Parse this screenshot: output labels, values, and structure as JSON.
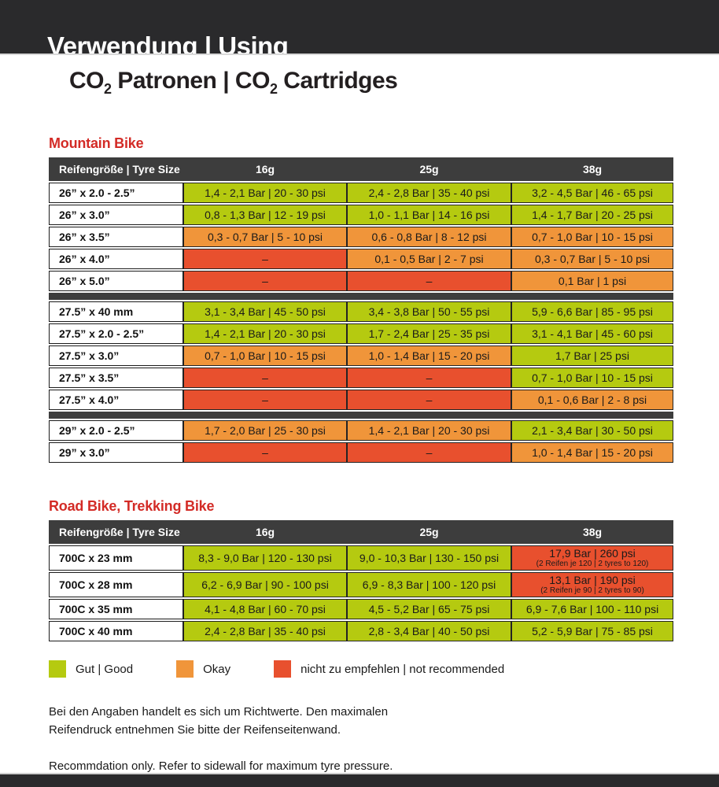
{
  "header": {
    "title": "Verwendung | Using",
    "subtitle": {
      "p1": "CO",
      "s1": "2",
      "p2": " Patronen | CO",
      "s2": "2",
      "p3": " Cartridges"
    }
  },
  "colors": {
    "good_green": "#b5ca10",
    "okay_orange": "#f0953a",
    "not_recommended_red": "#e8502e",
    "banner_dark": "#2a2a2c",
    "table_header_dark": "#3d3d3d",
    "heading_red": "#d32b26"
  },
  "sections": {
    "mountain": {
      "heading": "Mountain Bike",
      "columns": [
        "Reifengröße | Tyre Size",
        "16g",
        "25g",
        "38g"
      ],
      "rows": [
        {
          "label": "26” x 2.0 - 2.5”",
          "cells": [
            {
              "status": "green",
              "text": "1,4 - 2,1 Bar | 20 - 30 psi"
            },
            {
              "status": "green",
              "text": "2,4 - 2,8 Bar | 35 - 40 psi"
            },
            {
              "status": "green",
              "text": "3,2 - 4,5 Bar | 46 - 65 psi"
            }
          ]
        },
        {
          "label": "26” x 3.0”",
          "cells": [
            {
              "status": "green",
              "text": "0,8 - 1,3 Bar | 12 - 19 psi"
            },
            {
              "status": "green",
              "text": "1,0 - 1,1 Bar | 14 - 16 psi"
            },
            {
              "status": "green",
              "text": "1,4 - 1,7 Bar | 20 - 25 psi"
            }
          ]
        },
        {
          "label": "26” x 3.5”",
          "cells": [
            {
              "status": "orange",
              "text": "0,3 - 0,7 Bar | 5 - 10 psi"
            },
            {
              "status": "orange",
              "text": "0,6 - 0,8 Bar | 8 - 12 psi"
            },
            {
              "status": "orange",
              "text": "0,7 - 1,0 Bar | 10 - 15 psi"
            }
          ]
        },
        {
          "label": "26” x 4.0”",
          "cells": [
            {
              "status": "red",
              "text": "–"
            },
            {
              "status": "orange",
              "text": "0,1 - 0,5 Bar | 2 - 7 psi"
            },
            {
              "status": "orange",
              "text": "0,3 - 0,7 Bar | 5 - 10 psi"
            }
          ]
        },
        {
          "label": "26” x 5.0”",
          "cells": [
            {
              "status": "red",
              "text": "–"
            },
            {
              "status": "red",
              "text": "–"
            },
            {
              "status": "orange",
              "text": "0,1 Bar | 1 psi"
            }
          ]
        },
        {
          "separator": true
        },
        {
          "label": "27.5” x 40 mm",
          "cells": [
            {
              "status": "green",
              "text": "3,1 - 3,4 Bar | 45 - 50 psi"
            },
            {
              "status": "green",
              "text": "3,4 - 3,8 Bar | 50 - 55 psi"
            },
            {
              "status": "green",
              "text": "5,9 - 6,6 Bar | 85 - 95 psi"
            }
          ]
        },
        {
          "label": "27.5” x 2.0 - 2.5”",
          "cells": [
            {
              "status": "green",
              "text": "1,4 - 2,1 Bar | 20 - 30 psi"
            },
            {
              "status": "green",
              "text": "1,7 - 2,4 Bar | 25 - 35 psi"
            },
            {
              "status": "green",
              "text": "3,1 - 4,1 Bar | 45 - 60 psi"
            }
          ]
        },
        {
          "label": "27.5” x 3.0”",
          "cells": [
            {
              "status": "orange",
              "text": "0,7 - 1,0 Bar | 10 - 15 psi"
            },
            {
              "status": "orange",
              "text": "1,0 - 1,4 Bar | 15 - 20 psi"
            },
            {
              "status": "green",
              "text": "1,7 Bar | 25 psi"
            }
          ]
        },
        {
          "label": "27.5” x 3.5”",
          "cells": [
            {
              "status": "red",
              "text": "–"
            },
            {
              "status": "red",
              "text": "–"
            },
            {
              "status": "green",
              "text": "0,7 - 1,0 Bar | 10 - 15 psi"
            }
          ]
        },
        {
          "label": "27.5” x 4.0”",
          "cells": [
            {
              "status": "red",
              "text": "–"
            },
            {
              "status": "red",
              "text": "–"
            },
            {
              "status": "orange",
              "text": "0,1 - 0,6 Bar | 2 - 8 psi"
            }
          ]
        },
        {
          "separator": true
        },
        {
          "label": "29” x 2.0 - 2.5”",
          "cells": [
            {
              "status": "orange",
              "text": "1,7 - 2,0 Bar | 25 - 30 psi"
            },
            {
              "status": "orange",
              "text": "1,4 - 2,1 Bar | 20 - 30 psi"
            },
            {
              "status": "green",
              "text": "2,1 - 3,4 Bar | 30 - 50 psi"
            }
          ]
        },
        {
          "label": "29” x 3.0”",
          "cells": [
            {
              "status": "red",
              "text": "–"
            },
            {
              "status": "red",
              "text": "–"
            },
            {
              "status": "orange",
              "text": "1,0 - 1,4 Bar | 15 - 20 psi"
            }
          ]
        }
      ]
    },
    "road": {
      "heading": "Road Bike, Trekking Bike",
      "columns": [
        "Reifengröße | Tyre Size",
        "16g",
        "25g",
        "38g"
      ],
      "rows": [
        {
          "label": "700C x 23 mm",
          "cells": [
            {
              "status": "green",
              "text": "8,3 - 9,0 Bar | 120 - 130 psi"
            },
            {
              "status": "green",
              "text": "9,0 - 10,3 Bar | 130 - 150 psi"
            },
            {
              "status": "red",
              "text": "17,9 Bar | 260 psi",
              "sub": "(2 Reifen je 120 | 2 tyres to 120)"
            }
          ]
        },
        {
          "label": "700C x 28 mm",
          "cells": [
            {
              "status": "green",
              "text": "6,2 - 6,9 Bar | 90 - 100 psi"
            },
            {
              "status": "green",
              "text": "6,9 - 8,3 Bar | 100 - 120 psi"
            },
            {
              "status": "red",
              "text": "13,1 Bar | 190 psi",
              "sub": "(2 Reifen je 90 | 2 tyres to 90)"
            }
          ]
        },
        {
          "label": "700C x 35 mm",
          "cells": [
            {
              "status": "green",
              "text": "4,1 - 4,8 Bar | 60 - 70 psi"
            },
            {
              "status": "green",
              "text": "4,5 - 5,2 Bar | 65 - 75 psi"
            },
            {
              "status": "green",
              "text": "6,9 - 7,6 Bar | 100 - 110 psi"
            }
          ]
        },
        {
          "label": "700C x 40 mm",
          "cells": [
            {
              "status": "green",
              "text": "2,4 - 2,8 Bar | 35 - 40 psi"
            },
            {
              "status": "green",
              "text": "2,8 - 3,4 Bar | 40 - 50 psi"
            },
            {
              "status": "green",
              "text": "5,2 - 5,9 Bar | 75 - 85 psi"
            }
          ]
        }
      ]
    }
  },
  "legend": {
    "items": [
      {
        "status": "green",
        "label": "Gut | Good"
      },
      {
        "status": "orange",
        "label": "Okay"
      },
      {
        "status": "red",
        "label": "nicht zu empfehlen | not recommended"
      }
    ]
  },
  "notes": {
    "de_line1": "Bei den Angaben handelt es sich um Richtwerte. Den maximalen",
    "de_line2": "Reifendruck entnehmen Sie bitte der Reifenseitenwand.",
    "en": "Recommdation only. Refer to sidewall for maximum tyre pressure."
  }
}
